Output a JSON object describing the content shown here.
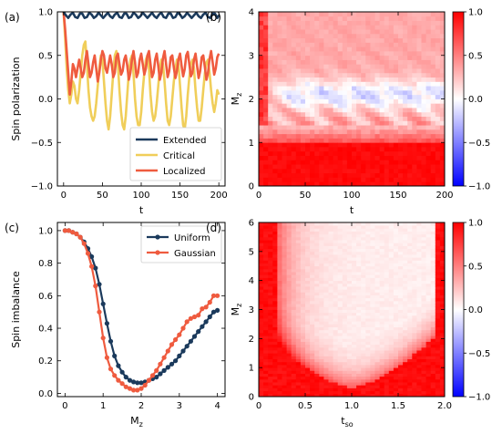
{
  "chart_data": [
    {
      "panel_label": "(a)",
      "type": "line",
      "xlabel": "t",
      "ylabel": "Spin polarization",
      "xlim": [
        -8,
        208
      ],
      "ylim": [
        -1.0,
        1.0
      ],
      "xticks": [
        0,
        50,
        100,
        150,
        200
      ],
      "yticks": [
        -1.0,
        -0.5,
        0.0,
        0.5,
        1.0
      ],
      "xtick_labels": [
        "0",
        "50",
        "100",
        "150",
        "200"
      ],
      "ytick_labels": [
        "−1.0",
        "−0.5",
        "0.0",
        "0.5",
        "1.0"
      ],
      "legend": {
        "placement": "lower-right",
        "entries": [
          "Extended",
          "Critical",
          "Localized"
        ]
      },
      "series": [
        {
          "name": "Extended",
          "color": "#1b3a5c",
          "x": [
            0,
            3,
            6,
            9,
            12,
            15,
            18,
            21,
            24,
            27,
            30,
            33,
            36,
            39,
            42,
            45,
            48,
            51,
            54,
            57,
            60,
            63,
            66,
            69,
            72,
            75,
            78,
            81,
            84,
            87,
            90,
            93,
            96,
            99,
            102,
            105,
            108,
            111,
            114,
            117,
            120,
            123,
            126,
            129,
            132,
            135,
            138,
            141,
            144,
            147,
            150,
            153,
            156,
            159,
            162,
            165,
            168,
            171,
            174,
            177,
            180,
            183,
            186,
            189,
            192,
            195,
            198,
            200
          ],
          "y": [
            1.0,
            0.96,
            0.93,
            0.97,
            0.99,
            0.94,
            0.93,
            0.98,
            0.98,
            0.93,
            0.94,
            0.99,
            0.97,
            0.93,
            0.95,
            0.99,
            0.96,
            0.93,
            0.96,
            0.99,
            0.95,
            0.93,
            0.97,
            0.99,
            0.94,
            0.93,
            0.98,
            0.98,
            0.93,
            0.94,
            0.99,
            0.97,
            0.93,
            0.95,
            0.99,
            0.96,
            0.93,
            0.96,
            0.99,
            0.95,
            0.93,
            0.97,
            0.99,
            0.94,
            0.93,
            0.98,
            0.98,
            0.93,
            0.94,
            0.99,
            0.97,
            0.93,
            0.95,
            0.99,
            0.96,
            0.93,
            0.96,
            0.99,
            0.95,
            0.93,
            0.97,
            0.99,
            0.94,
            0.93,
            0.98,
            0.98,
            0.93,
            0.96
          ]
        },
        {
          "name": "Critical",
          "color": "#f0ce5a",
          "x": [
            0,
            2,
            4,
            6,
            8,
            10,
            12,
            14,
            16,
            18,
            20,
            22,
            24,
            26,
            28,
            30,
            32,
            34,
            36,
            38,
            40,
            42,
            44,
            46,
            48,
            50,
            52,
            54,
            56,
            58,
            60,
            62,
            64,
            66,
            68,
            70,
            72,
            74,
            76,
            78,
            80,
            82,
            84,
            86,
            88,
            90,
            92,
            94,
            96,
            98,
            100,
            102,
            104,
            106,
            108,
            110,
            112,
            114,
            116,
            118,
            120,
            122,
            124,
            126,
            128,
            130,
            132,
            134,
            136,
            138,
            140,
            142,
            144,
            146,
            148,
            150,
            152,
            154,
            156,
            158,
            160,
            162,
            164,
            166,
            168,
            170,
            172,
            174,
            176,
            178,
            180,
            182,
            184,
            186,
            188,
            190,
            192,
            194,
            196,
            198,
            200
          ],
          "y": [
            1.0,
            0.7,
            0.35,
            0.1,
            -0.05,
            0.05,
            0.2,
            0.15,
            0.0,
            -0.05,
            0.1,
            0.3,
            0.5,
            0.62,
            0.66,
            0.4,
            0.1,
            -0.1,
            -0.2,
            -0.25,
            -0.2,
            -0.05,
            0.15,
            0.35,
            0.5,
            0.45,
            0.2,
            -0.05,
            -0.25,
            -0.35,
            -0.2,
            0.05,
            0.3,
            0.5,
            0.55,
            0.4,
            0.1,
            -0.15,
            -0.3,
            -0.35,
            -0.2,
            0.05,
            0.3,
            0.45,
            0.5,
            0.3,
            0.0,
            -0.2,
            -0.3,
            -0.3,
            -0.15,
            0.1,
            0.3,
            0.45,
            0.5,
            0.35,
            0.05,
            -0.15,
            -0.25,
            -0.2,
            -0.05,
            0.15,
            0.35,
            0.45,
            0.4,
            0.2,
            -0.05,
            -0.25,
            -0.3,
            -0.2,
            0.0,
            0.2,
            0.35,
            0.45,
            0.4,
            0.15,
            -0.1,
            -0.3,
            -0.35,
            -0.2,
            0.05,
            0.25,
            0.4,
            0.45,
            0.35,
            0.1,
            -0.1,
            -0.25,
            -0.25,
            -0.1,
            0.1,
            0.3,
            0.42,
            0.45,
            0.3,
            0.1,
            -0.05,
            -0.15,
            -0.05,
            0.1,
            0.05
          ]
        },
        {
          "name": "Localized",
          "color": "#ef5b3f",
          "x": [
            0,
            2,
            4,
            6,
            8,
            10,
            12,
            14,
            16,
            18,
            20,
            22,
            24,
            26,
            28,
            30,
            32,
            34,
            36,
            38,
            40,
            42,
            44,
            46,
            48,
            50,
            52,
            54,
            56,
            58,
            60,
            62,
            64,
            66,
            68,
            70,
            72,
            74,
            76,
            78,
            80,
            82,
            84,
            86,
            88,
            90,
            92,
            94,
            96,
            98,
            100,
            102,
            104,
            106,
            108,
            110,
            112,
            114,
            116,
            118,
            120,
            122,
            124,
            126,
            128,
            130,
            132,
            134,
            136,
            138,
            140,
            142,
            144,
            146,
            148,
            150,
            152,
            154,
            156,
            158,
            160,
            162,
            164,
            166,
            168,
            170,
            172,
            174,
            176,
            178,
            180,
            182,
            184,
            186,
            188,
            190,
            192,
            194,
            196,
            198,
            200
          ],
          "y": [
            1.0,
            0.8,
            0.55,
            0.3,
            0.05,
            0.2,
            0.4,
            0.35,
            0.25,
            0.35,
            0.45,
            0.35,
            0.25,
            0.3,
            0.45,
            0.55,
            0.4,
            0.25,
            0.3,
            0.42,
            0.5,
            0.35,
            0.2,
            0.3,
            0.45,
            0.55,
            0.5,
            0.35,
            0.3,
            0.4,
            0.5,
            0.4,
            0.25,
            0.3,
            0.48,
            0.52,
            0.4,
            0.28,
            0.32,
            0.45,
            0.5,
            0.38,
            0.22,
            0.3,
            0.45,
            0.55,
            0.42,
            0.25,
            0.3,
            0.45,
            0.52,
            0.4,
            0.28,
            0.35,
            0.5,
            0.55,
            0.4,
            0.25,
            0.3,
            0.45,
            0.52,
            0.38,
            0.22,
            0.3,
            0.47,
            0.55,
            0.4,
            0.25,
            0.32,
            0.48,
            0.5,
            0.36,
            0.24,
            0.32,
            0.46,
            0.52,
            0.38,
            0.26,
            0.34,
            0.5,
            0.54,
            0.4,
            0.26,
            0.3,
            0.45,
            0.52,
            0.38,
            0.24,
            0.32,
            0.48,
            0.5,
            0.36,
            0.22,
            0.3,
            0.46,
            0.55,
            0.42,
            0.28,
            0.35,
            0.48,
            0.52
          ]
        }
      ]
    },
    {
      "panel_label": "(b)",
      "type": "heatmap",
      "xlabel": "t",
      "ylabel": "M",
      "ylabel_sub": "z",
      "xlim": [
        0,
        200
      ],
      "ylim": [
        0,
        4
      ],
      "xticks": [
        0,
        50,
        100,
        150,
        200
      ],
      "yticks": [
        0,
        1,
        2,
        3,
        4
      ],
      "xtick_labels": [
        "0",
        "50",
        "100",
        "150",
        "200"
      ],
      "ytick_labels": [
        "0",
        "1",
        "2",
        "3",
        "4"
      ],
      "colorbar": {
        "range": [
          -1.0,
          1.0
        ],
        "ticks": [
          -1.0,
          -0.5,
          0.0,
          0.5,
          1.0
        ],
        "tick_labels": [
          "−1.0",
          "−0.5",
          "0.0",
          "0.5",
          "1.0"
        ],
        "colormap": "bwr"
      },
      "grid": {
        "nx": 40,
        "ny": 40
      }
    },
    {
      "panel_label": "(c)",
      "type": "line",
      "xlabel": "M",
      "xlabel_sub": "z",
      "ylabel": "Spin imbalance",
      "xlim": [
        -0.2,
        4.2
      ],
      "ylim": [
        -0.02,
        1.05
      ],
      "xticks": [
        0,
        1,
        2,
        3,
        4
      ],
      "yticks": [
        0.0,
        0.2,
        0.4,
        0.6,
        0.8,
        1.0
      ],
      "xtick_labels": [
        "0",
        "1",
        "2",
        "3",
        "4"
      ],
      "ytick_labels": [
        "0.0",
        "0.2",
        "0.4",
        "0.6",
        "0.8",
        "1.0"
      ],
      "legend": {
        "placement": "top-right",
        "entries": [
          "Uniform",
          "Gaussian"
        ]
      },
      "series": [
        {
          "name": "Uniform",
          "color": "#1b3a5c",
          "x": [
            0.0,
            0.1,
            0.2,
            0.3,
            0.4,
            0.5,
            0.6,
            0.7,
            0.8,
            0.9,
            1.0,
            1.1,
            1.2,
            1.3,
            1.4,
            1.5,
            1.6,
            1.7,
            1.8,
            1.9,
            2.0,
            2.1,
            2.2,
            2.3,
            2.4,
            2.5,
            2.6,
            2.7,
            2.8,
            2.9,
            3.0,
            3.1,
            3.2,
            3.3,
            3.4,
            3.5,
            3.6,
            3.7,
            3.8,
            3.9,
            4.0
          ],
          "y": [
            1.0,
            1.0,
            0.99,
            0.98,
            0.96,
            0.93,
            0.89,
            0.84,
            0.77,
            0.67,
            0.55,
            0.43,
            0.32,
            0.23,
            0.17,
            0.13,
            0.1,
            0.08,
            0.07,
            0.065,
            0.065,
            0.07,
            0.08,
            0.09,
            0.1,
            0.12,
            0.14,
            0.16,
            0.18,
            0.2,
            0.23,
            0.26,
            0.29,
            0.32,
            0.35,
            0.38,
            0.41,
            0.44,
            0.47,
            0.5,
            0.51
          ]
        },
        {
          "name": "Gaussian",
          "color": "#ef5b3f",
          "x": [
            0.0,
            0.1,
            0.2,
            0.3,
            0.4,
            0.5,
            0.6,
            0.7,
            0.8,
            0.9,
            1.0,
            1.1,
            1.2,
            1.3,
            1.4,
            1.5,
            1.6,
            1.7,
            1.8,
            1.9,
            2.0,
            2.1,
            2.2,
            2.3,
            2.4,
            2.5,
            2.6,
            2.7,
            2.8,
            2.9,
            3.0,
            3.1,
            3.2,
            3.3,
            3.4,
            3.5,
            3.6,
            3.7,
            3.8,
            3.9,
            4.0
          ],
          "y": [
            1.0,
            1.0,
            0.99,
            0.98,
            0.96,
            0.92,
            0.86,
            0.78,
            0.66,
            0.5,
            0.34,
            0.22,
            0.15,
            0.11,
            0.08,
            0.06,
            0.04,
            0.03,
            0.02,
            0.02,
            0.03,
            0.05,
            0.08,
            0.11,
            0.14,
            0.18,
            0.22,
            0.26,
            0.3,
            0.33,
            0.36,
            0.4,
            0.44,
            0.46,
            0.47,
            0.48,
            0.52,
            0.53,
            0.56,
            0.6,
            0.6
          ]
        }
      ]
    },
    {
      "panel_label": "(d)",
      "type": "heatmap",
      "xlabel": "t",
      "xlabel_sub": "so",
      "ylabel": "M",
      "ylabel_sub": "z",
      "xlim": [
        0,
        2.0
      ],
      "ylim": [
        0,
        6
      ],
      "xticks": [
        0,
        0.5,
        1.0,
        1.5,
        2.0
      ],
      "yticks": [
        0,
        1,
        2,
        3,
        4,
        5,
        6
      ],
      "xtick_labels": [
        "0",
        "0.5",
        "1.0",
        "1.5",
        "2.0"
      ],
      "ytick_labels": [
        "0",
        "1",
        "2",
        "3",
        "4",
        "5",
        "6"
      ],
      "colorbar": {
        "range": [
          -1.0,
          1.0
        ],
        "ticks": [
          -1.0,
          -0.5,
          0.0,
          0.5,
          1.0
        ],
        "tick_labels": [
          "−1.0",
          "−0.5",
          "0.0",
          "0.5",
          "1.0"
        ],
        "colormap": "bwr"
      },
      "grid": {
        "nx": 40,
        "ny": 60
      }
    }
  ]
}
